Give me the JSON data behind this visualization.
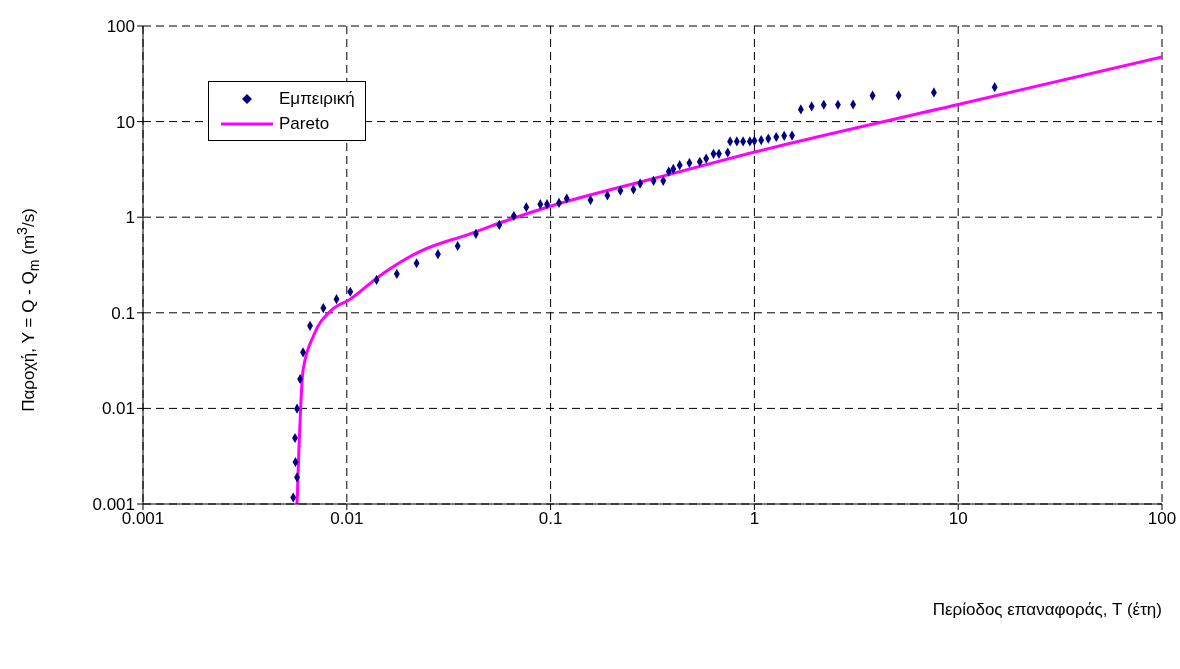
{
  "chart_data": {
    "type": "scatter",
    "xlabel": "Περίοδος επαναφοράς, T (έτη)",
    "ylabel": "Παροχή,  Y = Q - Q$_{m}$ (m$^{3}$/s)",
    "log": "xy",
    "xlim": [
      0.001,
      100
    ],
    "ylim": [
      0.001,
      100
    ],
    "xticks": [
      0.001,
      0.01,
      0.1,
      1,
      10,
      100
    ],
    "yticks": [
      0.001,
      0.01,
      0.1,
      1,
      10,
      100
    ],
    "grid": true,
    "legend": "top left",
    "marker": "diamond",
    "series": [
      {
        "name": "Εμπειρική",
        "color": "#000080",
        "x": [
          0.00546,
          0.0057,
          0.0056,
          0.00557,
          0.0057,
          0.0059,
          0.0061,
          0.0066,
          0.00767,
          0.0089,
          0.0104,
          0.014,
          0.0176,
          0.022,
          0.028,
          0.035,
          0.043,
          0.056,
          0.066,
          0.076,
          0.089,
          0.096,
          0.11,
          0.12,
          0.157,
          0.19,
          0.22,
          0.255,
          0.275,
          0.32,
          0.357,
          0.38,
          0.4,
          0.43,
          0.48,
          0.54,
          0.58,
          0.63,
          0.67,
          0.74,
          0.76,
          0.82,
          0.88,
          0.95,
          1.0,
          1.08,
          1.17,
          1.28,
          1.4,
          1.53,
          1.69,
          1.91,
          2.19,
          2.57,
          3.05,
          3.8,
          5.1,
          7.6,
          15.1
        ],
        "values": [
          0.00117,
          0.0019,
          0.00275,
          0.0049,
          0.00993,
          0.0203,
          0.0386,
          0.073,
          0.112,
          0.139,
          0.166,
          0.221,
          0.255,
          0.33,
          0.41,
          0.5,
          0.67,
          0.83,
          1.03,
          1.27,
          1.37,
          1.37,
          1.41,
          1.57,
          1.51,
          1.69,
          1.9,
          1.95,
          2.25,
          2.4,
          2.4,
          3.0,
          3.2,
          3.5,
          3.7,
          3.8,
          4.1,
          4.6,
          4.6,
          4.75,
          6.2,
          6.2,
          6.2,
          6.2,
          6.3,
          6.4,
          6.65,
          6.9,
          7.1,
          7.15,
          13.4,
          14.4,
          15,
          15,
          15.1,
          18.7,
          18.8,
          20.2,
          22.9
        ]
      },
      {
        "name": "Pareto",
        "type": "line",
        "color": "#ff00ff",
        "marker": "none",
        "x": [
          0.0057,
          0.0061,
          0.0069,
          0.0083,
          0.0104,
          0.0146,
          0.0229,
          0.0402,
          0.058,
          0.096,
          0.3,
          1,
          10,
          100
        ],
        "values": [
          0.001,
          0.025,
          0.059,
          0.104,
          0.139,
          0.246,
          0.44,
          0.67,
          0.89,
          1.27,
          2.45,
          4.8,
          15.1,
          47.3
        ]
      }
    ]
  }
}
